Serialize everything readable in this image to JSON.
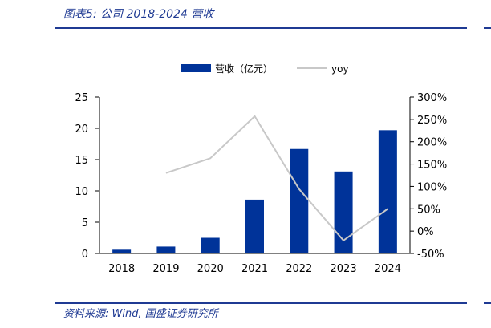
{
  "header": {
    "title": "图表5:  公司 2018-2024 营收"
  },
  "footer": {
    "source": "资料来源:  Wind, 国盛证券研究所"
  },
  "colors": {
    "bar": "#003399",
    "line": "#c8c8c8",
    "accent": "#1f3a93"
  },
  "chart_data": {
    "type": "bar",
    "categories": [
      "2018",
      "2019",
      "2020",
      "2021",
      "2022",
      "2023",
      "2024"
    ],
    "series": [
      {
        "name": "营收（亿元）",
        "type": "bar",
        "axis": "left",
        "values": [
          0.6,
          1.1,
          2.5,
          8.6,
          16.7,
          13.1,
          19.7
        ]
      },
      {
        "name": "yoy",
        "type": "line",
        "axis": "right",
        "values": [
          null,
          130,
          163,
          257,
          94,
          -21,
          50
        ]
      }
    ],
    "ylim_left": [
      0,
      25
    ],
    "yticks_left": [
      "0",
      "5",
      "10",
      "15",
      "20",
      "25"
    ],
    "ylim_right": [
      -50,
      300
    ],
    "yticks_right": [
      "-50%",
      "0%",
      "50%",
      "100%",
      "150%",
      "200%",
      "250%",
      "300%"
    ],
    "legend_position": "top",
    "grid": false
  }
}
